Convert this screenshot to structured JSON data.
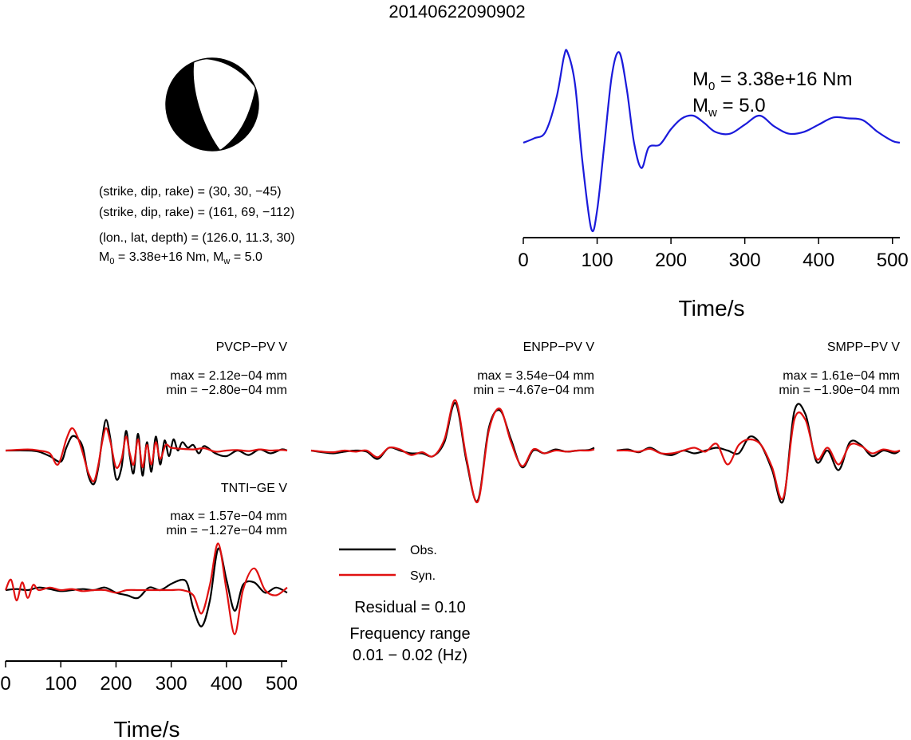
{
  "event_id": "20140622090902",
  "focal_mechanism": {
    "nodal_plane_1": "(strike, dip, rake) = (30, 30, −45)",
    "nodal_plane_2": "(strike, dip, rake) = (161, 69, −112)",
    "location": "(lon., lat, depth) = (126.0, 11.3, 30)",
    "moment_prefix": "M",
    "moment_sub": "0",
    "moment_value": " = 3.38e+16 Nm, M",
    "mw_sub": "w",
    "mw_value": " = 5.0",
    "beachball_fill": "#000000"
  },
  "stf_panel": {
    "m0_prefix": "M",
    "m0_sub": "0",
    "m0_value": " = 3.38e+16 Nm",
    "mw_prefix": "M",
    "mw_sub": "w",
    "mw_value": " = 5.0",
    "xlabel": "Time/s",
    "color": "#1a1adb"
  },
  "stations": [
    {
      "name": "PVCP−PV V",
      "max": "max = 2.12e−04 mm",
      "min": "min = −2.80e−04 mm"
    },
    {
      "name": "ENPP−PV V",
      "max": "max = 3.54e−04 mm",
      "min": "min = −4.67e−04 mm"
    },
    {
      "name": "SMPP−PV V",
      "max": "max = 1.61e−04 mm",
      "min": "min = −1.90e−04 mm"
    },
    {
      "name": "TNTI−GE V",
      "max": "max = 1.57e−04 mm",
      "min": "min = −1.27e−04 mm"
    }
  ],
  "legend": {
    "obs_label": "Obs.",
    "syn_label": "Syn.",
    "obs_color": "#000000",
    "syn_color": "#e01010"
  },
  "fit": {
    "residual": "Residual = 0.10",
    "freq_title": "Frequency range",
    "freq_value": "0.01 − 0.02 (Hz)"
  },
  "bottom_axis": {
    "xlabel": "Time/s"
  },
  "chart_data": [
    {
      "type": "line",
      "title": "",
      "xlabel": "Time/s",
      "ylabel": "",
      "xlim": [
        0,
        510
      ],
      "ylim": [
        -1.05,
        1.05
      ],
      "ticks": [
        0,
        100,
        200,
        300,
        400,
        500
      ],
      "series": [
        {
          "x": [
            0,
            15,
            30,
            45,
            55,
            60,
            70,
            80,
            92,
            100,
            110,
            120,
            130,
            140,
            150,
            160,
            170,
            185,
            200,
            215,
            230,
            245,
            260,
            280,
            300,
            320,
            340,
            360,
            380,
            400,
            420,
            440,
            460,
            480,
            500,
            510
          ],
          "y": [
            0.0,
            0.05,
            0.12,
            0.5,
            0.95,
            1.0,
            0.65,
            -0.2,
            -0.95,
            -0.75,
            0.0,
            0.75,
            1.0,
            0.6,
            0.0,
            -0.28,
            -0.05,
            -0.02,
            0.15,
            0.27,
            0.3,
            0.22,
            0.12,
            0.1,
            0.2,
            0.3,
            0.18,
            0.1,
            0.12,
            0.2,
            0.28,
            0.27,
            0.25,
            0.12,
            0.02,
            0.0
          ]
        }
      ]
    },
    {
      "type": "line",
      "title": "PVCP−PV V",
      "xlim": [
        0,
        510
      ],
      "ylim": [
        -1,
        1
      ],
      "series": [
        {
          "name": "Obs.",
          "x": [
            0,
            40,
            60,
            80,
            100,
            110,
            120,
            130,
            140,
            150,
            160,
            168,
            175,
            182,
            190,
            200,
            210,
            218,
            225,
            232,
            240,
            248,
            256,
            264,
            272,
            280,
            288,
            296,
            304,
            312,
            320,
            330,
            340,
            350,
            360,
            380,
            400,
            420,
            440,
            460,
            480,
            500,
            510
          ],
          "y": [
            0.0,
            0.0,
            -0.02,
            -0.1,
            -0.2,
            0.05,
            0.25,
            0.22,
            0.05,
            -0.45,
            -0.6,
            -0.3,
            0.2,
            0.55,
            0.2,
            -0.5,
            -0.3,
            0.35,
            -0.1,
            -0.4,
            0.3,
            -0.45,
            0.15,
            -0.38,
            0.25,
            -0.25,
            0.18,
            -0.1,
            0.2,
            0.0,
            0.15,
            0.05,
            0.1,
            -0.05,
            0.08,
            -0.05,
            -0.1,
            0.0,
            -0.08,
            0.02,
            -0.05,
            0.02,
            0.0
          ]
        },
        {
          "name": "Syn.",
          "x": [
            0,
            40,
            60,
            80,
            95,
            110,
            120,
            130,
            140,
            150,
            160,
            168,
            175,
            182,
            190,
            200,
            210,
            218,
            225,
            232,
            240,
            248,
            256,
            264,
            272,
            280,
            290,
            300,
            320,
            340,
            360,
            380,
            400,
            420,
            440,
            460,
            480,
            500,
            510
          ],
          "y": [
            0.0,
            0.02,
            0.0,
            -0.05,
            -0.25,
            0.2,
            0.4,
            0.25,
            -0.05,
            -0.4,
            -0.55,
            -0.25,
            0.15,
            0.4,
            0.15,
            -0.3,
            -0.15,
            0.25,
            -0.05,
            -0.25,
            0.2,
            -0.3,
            0.1,
            -0.25,
            0.15,
            -0.15,
            0.1,
            0.05,
            0.03,
            0.02,
            0.04,
            -0.02,
            0.0,
            0.01,
            -0.01,
            0.02,
            0.0,
            0.01,
            0.0
          ]
        }
      ]
    },
    {
      "type": "line",
      "title": "ENPP−PV V",
      "xlim": [
        0,
        510
      ],
      "ylim": [
        -1,
        1
      ],
      "series": [
        {
          "name": "Obs.",
          "x": [
            0,
            20,
            40,
            60,
            80,
            100,
            120,
            140,
            160,
            180,
            200,
            220,
            240,
            260,
            280,
            300,
            320,
            340,
            360,
            380,
            400,
            420,
            440,
            460,
            480,
            500,
            510
          ],
          "y": [
            0.0,
            -0.03,
            -0.05,
            -0.02,
            0.0,
            -0.02,
            -0.15,
            0.05,
            0.0,
            -0.05,
            -0.05,
            -0.1,
            0.15,
            0.85,
            -0.2,
            -0.9,
            0.4,
            0.72,
            0.2,
            -0.3,
            0.0,
            -0.05,
            0.02,
            -0.02,
            0.0,
            0.01,
            0.05
          ]
        },
        {
          "name": "Syn.",
          "x": [
            0,
            20,
            40,
            60,
            80,
            100,
            120,
            140,
            160,
            180,
            200,
            220,
            240,
            260,
            280,
            300,
            320,
            340,
            360,
            380,
            400,
            420,
            440,
            460,
            480,
            500,
            510
          ],
          "y": [
            0.0,
            -0.02,
            -0.03,
            0.0,
            -0.02,
            0.0,
            -0.12,
            0.05,
            0.02,
            -0.08,
            -0.03,
            -0.1,
            0.2,
            0.9,
            -0.15,
            -0.92,
            0.35,
            0.75,
            0.15,
            -0.28,
            0.02,
            -0.05,
            0.0,
            -0.02,
            0.0,
            0.0,
            0.02
          ]
        }
      ]
    },
    {
      "type": "line",
      "title": "SMPP−PV V",
      "xlim": [
        0,
        510
      ],
      "ylim": [
        -1,
        1
      ],
      "series": [
        {
          "name": "Obs.",
          "x": [
            0,
            20,
            40,
            60,
            80,
            100,
            120,
            140,
            160,
            180,
            200,
            220,
            240,
            260,
            280,
            300,
            320,
            340,
            360,
            380,
            400,
            420,
            440,
            460,
            480,
            500,
            510
          ],
          "y": [
            0.0,
            0.02,
            -0.03,
            0.05,
            -0.05,
            -0.08,
            0.0,
            -0.05,
            0.0,
            0.05,
            0.0,
            -0.05,
            0.25,
            0.1,
            -0.35,
            -0.9,
            0.7,
            0.65,
            -0.2,
            0.0,
            -0.35,
            0.15,
            0.1,
            -0.1,
            0.0,
            -0.05,
            0.0
          ]
        },
        {
          "name": "Syn.",
          "x": [
            0,
            20,
            40,
            60,
            80,
            100,
            120,
            140,
            160,
            180,
            200,
            220,
            240,
            260,
            280,
            300,
            320,
            340,
            360,
            380,
            400,
            420,
            440,
            460,
            480,
            500,
            510
          ],
          "y": [
            0.0,
            0.0,
            -0.02,
            0.03,
            -0.05,
            -0.05,
            0.0,
            0.05,
            -0.02,
            0.12,
            -0.25,
            0.1,
            0.2,
            0.1,
            -0.3,
            -0.85,
            0.55,
            0.55,
            -0.15,
            0.05,
            -0.25,
            0.1,
            0.08,
            -0.05,
            0.02,
            -0.02,
            0.0
          ]
        }
      ]
    },
    {
      "type": "line",
      "title": "TNTI−GE V",
      "xlabel": "Time/s",
      "xlim": [
        0,
        510
      ],
      "ylim": [
        -1,
        1
      ],
      "ticks": [
        0,
        100,
        200,
        300,
        400,
        500
      ],
      "series": [
        {
          "name": "Obs.",
          "x": [
            0,
            20,
            40,
            60,
            80,
            100,
            120,
            140,
            160,
            180,
            200,
            220,
            240,
            260,
            280,
            300,
            320,
            330,
            340,
            355,
            370,
            385,
            400,
            415,
            430,
            450,
            470,
            490,
            510
          ],
          "y": [
            0.0,
            0.02,
            0.0,
            0.05,
            0.02,
            -0.02,
            0.0,
            0.02,
            0.0,
            0.05,
            -0.05,
            -0.1,
            -0.15,
            0.05,
            0.0,
            0.12,
            0.2,
            0.1,
            -0.35,
            -0.7,
            -0.2,
            0.8,
            0.2,
            -0.4,
            0.1,
            0.15,
            -0.05,
            0.05,
            -0.05
          ]
        },
        {
          "name": "Syn.",
          "x": [
            0,
            10,
            20,
            30,
            40,
            50,
            60,
            80,
            100,
            120,
            140,
            160,
            180,
            200,
            220,
            240,
            260,
            280,
            300,
            320,
            340,
            355,
            370,
            385,
            400,
            415,
            430,
            450,
            470,
            490,
            510
          ],
          "y": [
            0.0,
            0.2,
            -0.2,
            0.15,
            -0.15,
            0.1,
            0.0,
            0.05,
            0.0,
            0.02,
            -0.02,
            0.0,
            0.0,
            -0.05,
            0.0,
            0.0,
            0.0,
            0.0,
            0.0,
            0.0,
            -0.1,
            -0.45,
            0.1,
            0.9,
            0.0,
            -0.85,
            0.0,
            0.42,
            0.0,
            -0.1,
            0.05
          ]
        }
      ]
    }
  ]
}
